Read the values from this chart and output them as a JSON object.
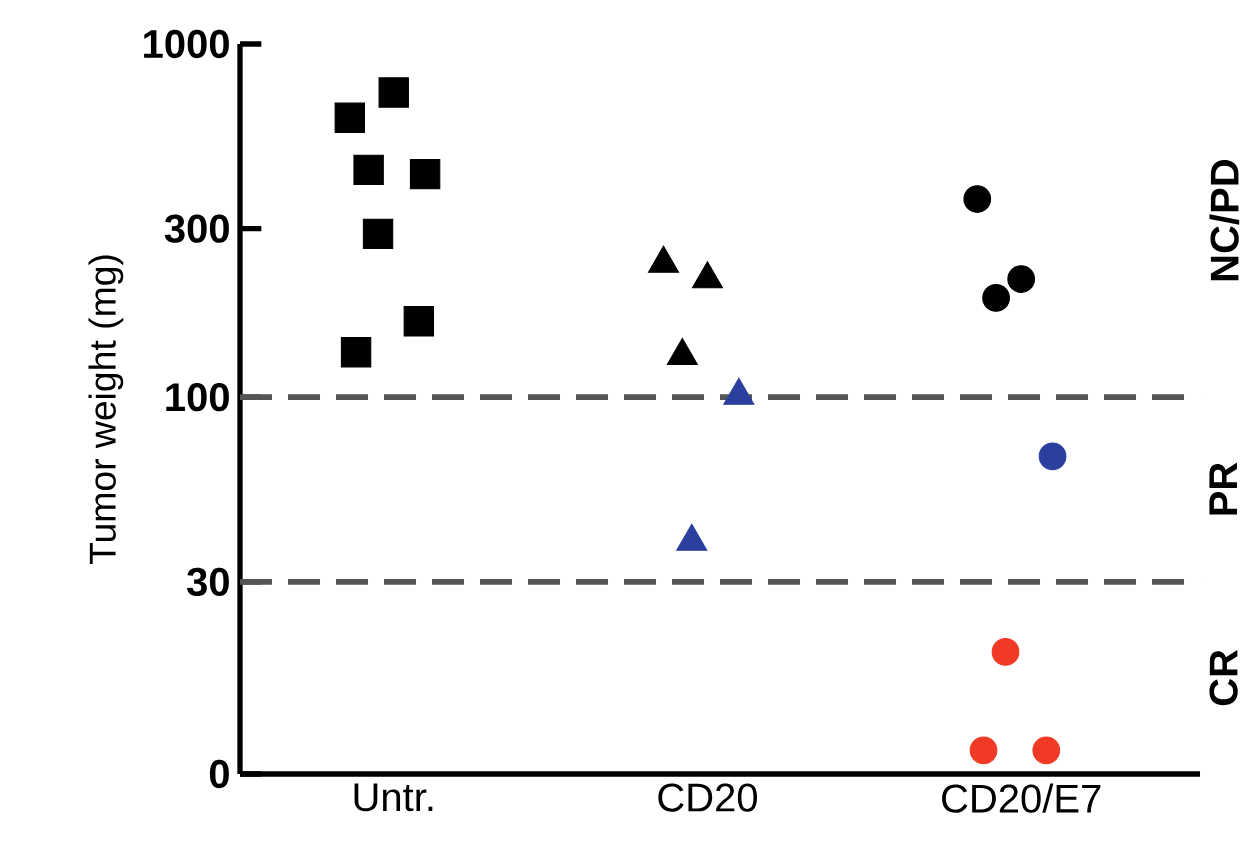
{
  "chart_data": {
    "type": "scatter",
    "ylabel": "Tumor weight (mg)",
    "categories": [
      "Untr.",
      "CD20",
      "CD20/E7"
    ],
    "log": "y",
    "ylim": [
      0,
      1000
    ],
    "yticks": [
      0,
      30,
      100,
      300,
      1000
    ],
    "grid": false,
    "series": [
      {
        "marker": "square",
        "x": [
          "Untr.",
          "Untr.",
          "Untr.",
          "Untr.",
          "Untr.",
          "Untr.",
          "Untr."
        ],
        "values": [
          618,
          729,
          440,
          428,
          290,
          164,
          134
        ],
        "colors": [
          "#000000",
          "#000000",
          "#000000",
          "#000000",
          "#000000",
          "#000000",
          "#000000"
        ]
      },
      {
        "marker": "triangle",
        "x": [
          "CD20",
          "CD20",
          "CD20",
          "CD20",
          "CD20"
        ],
        "values": [
          239,
          216,
          131,
          101,
          39
        ],
        "colors": [
          "#000000",
          "#000000",
          "#000000",
          "#2b3f9e",
          "#2b3f9e"
        ]
      },
      {
        "marker": "circle",
        "x": [
          "CD20/E7",
          "CD20/E7",
          "CD20/E7",
          "CD20/E7",
          "CD20/E7",
          "CD20/E7",
          "CD20/E7"
        ],
        "values": [
          364,
          216,
          191,
          68,
          19,
          10,
          10
        ],
        "colors": [
          "#000000",
          "#000000",
          "#000000",
          "#2b3f9e",
          "#f03a25",
          "#f03a25",
          "#f03a25"
        ]
      }
    ],
    "ref_lines": [
      {
        "axis": "y",
        "value": 100,
        "color": "#555555",
        "line_style": "dashed"
      },
      {
        "axis": "y",
        "value": 30,
        "color": "#555555",
        "line_style": "dashed"
      }
    ],
    "annotations": [
      "NC/PD",
      "PR",
      "CR"
    ]
  }
}
